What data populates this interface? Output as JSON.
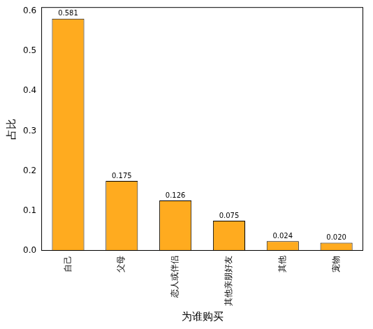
{
  "chart_data": {
    "type": "bar",
    "xlabel": "为谁购买",
    "ylabel": "占比",
    "categories": [
      "自己",
      "父母",
      "恋人或伴侣",
      "其他亲朋好友",
      "其他",
      "宠物"
    ],
    "values": [
      0.581,
      0.175,
      0.126,
      0.075,
      0.024,
      0.02
    ],
    "value_labels": [
      "0.581",
      "0.175",
      "0.126",
      "0.075",
      "0.024",
      "0.020"
    ],
    "color": "#ffab1f",
    "ylim": [
      0,
      0.61
    ],
    "yticks": [
      {
        "value": 0,
        "label": "0.0"
      },
      0.1,
      0.2,
      0.3,
      0.4,
      0.5,
      0.6
    ],
    "grid": false,
    "data_labels": true
  }
}
